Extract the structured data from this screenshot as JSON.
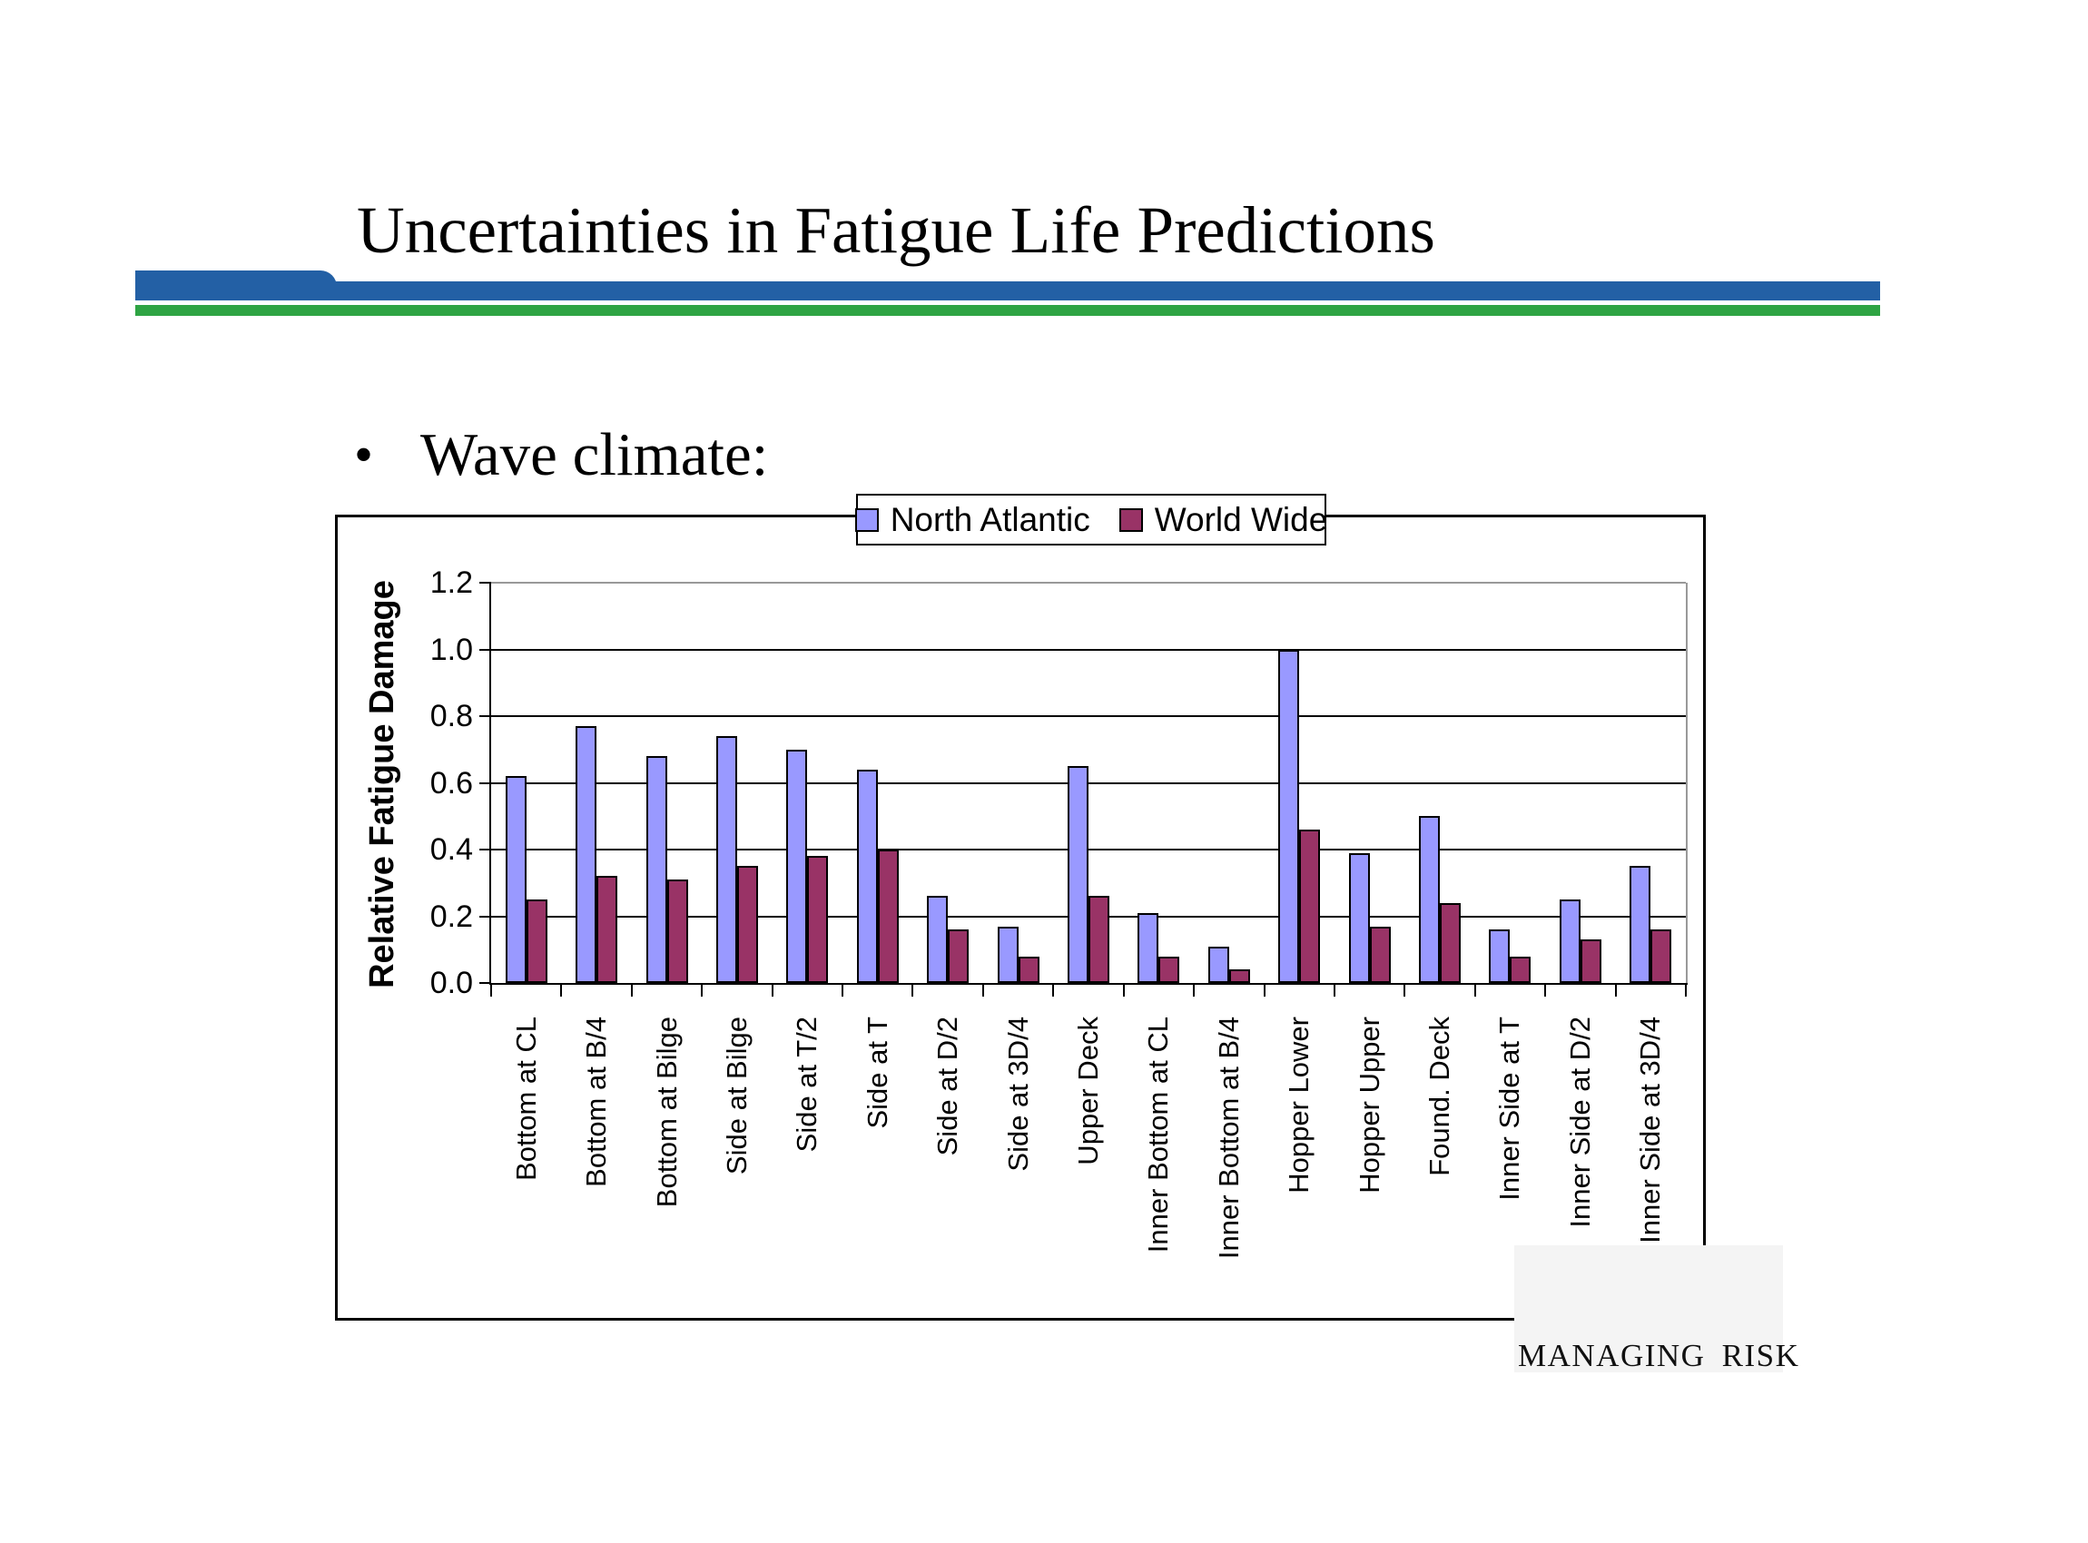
{
  "slide": {
    "title": "Uncertainties in Fatigue Life Predictions",
    "bullet_marker": "•",
    "bullet_text": "Wave climate:",
    "footer_text": "MANAGING RISK"
  },
  "theme": {
    "accent_blue": "#2360A5",
    "accent_green": "#2EA443",
    "gridline_color": "#000000",
    "plot_border_gray": "#999999",
    "watermark_gray": "#f4f4f4"
  },
  "chart_data": {
    "type": "bar",
    "title": "",
    "xlabel": "",
    "ylabel": "Relative Fatigue Damage",
    "ylim": [
      0,
      1.2
    ],
    "grid": true,
    "legend_position": "top-center",
    "ytick_labels": [
      "0.0",
      "0.2",
      "0.4",
      "0.6",
      "0.8",
      "1.0",
      "1.2"
    ],
    "categories": [
      "Bottom at CL",
      "Bottom at B/4",
      "Bottom at Bilge",
      "Side at Bilge",
      "Side at T/2",
      "Side at T",
      "Side at D/2",
      "Side at 3D/4",
      "Upper Deck",
      "Inner Bottom at CL",
      "Inner Bottom at B/4",
      "Hopper Lower",
      "Hopper Upper",
      "Found. Deck",
      "Inner Side at T",
      "Inner Side at D/2",
      "Inner Side at 3D/4"
    ],
    "series": [
      {
        "name": "North Atlantic",
        "color": "#9999FF",
        "values": [
          0.62,
          0.77,
          0.68,
          0.74,
          0.7,
          0.64,
          0.26,
          0.17,
          0.65,
          0.21,
          0.11,
          1.0,
          0.39,
          0.5,
          0.16,
          0.25,
          0.35
        ]
      },
      {
        "name": "World Wide",
        "color": "#993366",
        "values": [
          0.25,
          0.32,
          0.31,
          0.35,
          0.38,
          0.4,
          0.16,
          0.08,
          0.26,
          0.08,
          0.04,
          0.46,
          0.17,
          0.24,
          0.08,
          0.13,
          0.16
        ]
      }
    ]
  }
}
